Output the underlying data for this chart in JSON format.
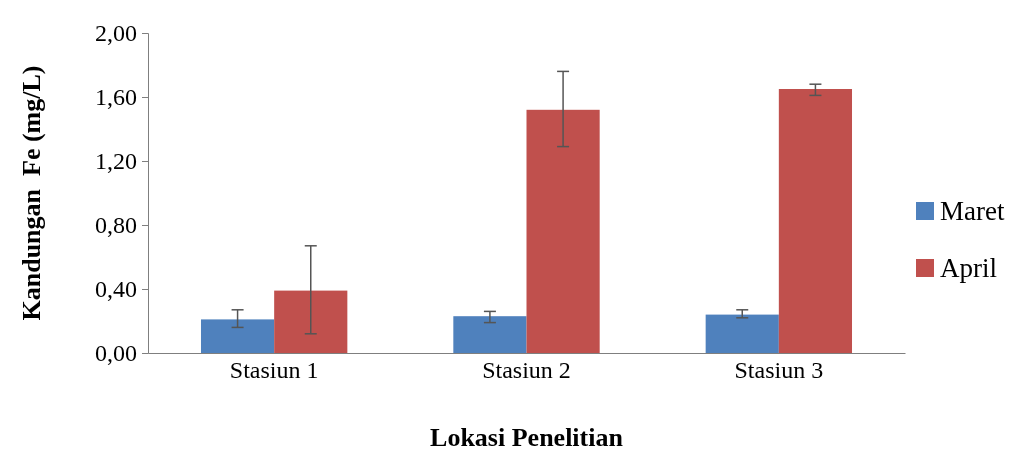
{
  "chart_data": {
    "type": "bar",
    "xlabel": "Lokasi Penelitian",
    "ylabel": "Kandungan  Fe (mg/L)",
    "categories": [
      "Stasiun 1",
      "Stasiun 2",
      "Stasiun 3"
    ],
    "series": [
      {
        "name": "Maret",
        "color": "#4f81bd",
        "values": [
          0.21,
          0.23,
          0.24
        ],
        "errors": [
          [
            0.16,
            0.27
          ],
          [
            0.19,
            0.26
          ],
          [
            0.22,
            0.27
          ]
        ]
      },
      {
        "name": "April",
        "color": "#c0504d",
        "values": [
          0.39,
          1.52,
          1.65
        ],
        "errors": [
          [
            0.12,
            0.67
          ],
          [
            1.29,
            1.76
          ],
          [
            1.61,
            1.68
          ]
        ]
      }
    ],
    "ylim": [
      0,
      2
    ],
    "yticks": [
      {
        "value": 0,
        "label": "0,00"
      },
      {
        "value": 0.4,
        "label": "0,40"
      },
      {
        "value": 0.8,
        "label": "0,80"
      },
      {
        "value": 1.2,
        "label": "1,20"
      },
      {
        "value": 1.6,
        "label": "1,60"
      },
      {
        "value": 2,
        "label": "2,00"
      }
    ],
    "grid": false,
    "legend": "right"
  }
}
